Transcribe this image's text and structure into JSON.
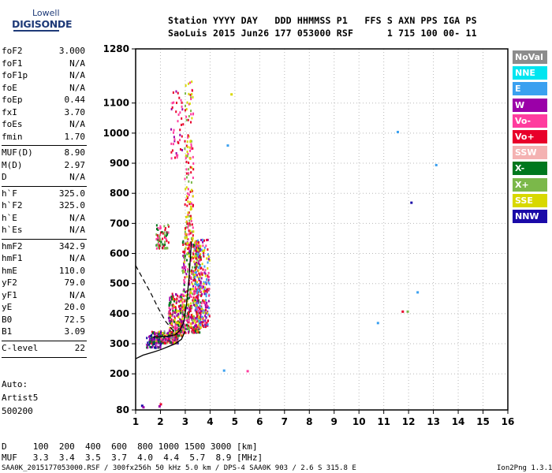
{
  "logo": {
    "line1": "Lowell",
    "line2": "DIGISONDE"
  },
  "header": {
    "line1": "Station YYYY DAY   DDD HHMMSS P1   FFS S AXN PPS IGA PS",
    "line2": "SaoLuis 2015 Jun26 177 053000 RSF      1 715 100 00- 11"
  },
  "params": [
    {
      "name": "foF2",
      "value": "3.000"
    },
    {
      "name": "foF1",
      "value": "N/A"
    },
    {
      "name": "foF1p",
      "value": "N/A"
    },
    {
      "name": "foE",
      "value": "N/A"
    },
    {
      "name": "foEp",
      "value": "0.44"
    },
    {
      "name": "fxI",
      "value": "3.70"
    },
    {
      "name": "foEs",
      "value": "N/A"
    },
    {
      "name": "fmin",
      "value": "1.70"
    },
    {
      "name": "MUF(D)",
      "value": "8.90"
    },
    {
      "name": "M(D)",
      "value": "2.97"
    },
    {
      "name": "D",
      "value": "N/A"
    },
    {
      "name": "h`F",
      "value": "325.0"
    },
    {
      "name": "h`F2",
      "value": "325.0"
    },
    {
      "name": "h`E",
      "value": "N/A"
    },
    {
      "name": "h`Es",
      "value": "N/A"
    },
    {
      "name": "hmF2",
      "value": "342.9"
    },
    {
      "name": "hmF1",
      "value": "N/A"
    },
    {
      "name": "hmE",
      "value": "110.0"
    },
    {
      "name": "yF2",
      "value": "79.0"
    },
    {
      "name": "yF1",
      "value": "N/A"
    },
    {
      "name": "yE",
      "value": "20.0"
    },
    {
      "name": "B0",
      "value": "72.5"
    },
    {
      "name": "B1",
      "value": "3.09"
    },
    {
      "name": "C-level",
      "value": "22"
    }
  ],
  "auto": {
    "label": "Auto:",
    "artist": "Artist5",
    "version": "500200"
  },
  "legend": [
    {
      "label": "NoVal",
      "color": "#8c8c8c"
    },
    {
      "label": "NNE",
      "color": "#00e5f0"
    },
    {
      "label": "E",
      "color": "#3aa0f0"
    },
    {
      "label": "W",
      "color": "#9b00a8"
    },
    {
      "label": "Vo-",
      "color": "#ff3c9e"
    },
    {
      "label": "Vo+",
      "color": "#e8002a"
    },
    {
      "label": "SSW",
      "color": "#f4b2b2"
    },
    {
      "label": "X-",
      "color": "#00781e"
    },
    {
      "label": "X+",
      "color": "#7bb84a"
    },
    {
      "label": "SSE",
      "color": "#d8d800"
    },
    {
      "label": "NNW",
      "color": "#1a0aa8"
    }
  ],
  "footer": {
    "d_row": "D     100  200  400  600  800 1000 1500 3000 [km]",
    "muf_row": "MUF   3.3  3.4  3.5  3.7  4.0  4.4  5.7  8.9 [MHz]",
    "file_info": "SAA0K_2015177053000.RSF / 300fx256h 50 kHz 5.0 km / DPS-4 SAA0K 903 / 2.6 S 315.8 E",
    "software": "Ion2Png 1.3.17"
  },
  "chart_data": {
    "type": "scatter",
    "xlim": [
      1,
      16
    ],
    "ylim": [
      80,
      1280
    ],
    "x_ticks": [
      1,
      2,
      3,
      4,
      5,
      6,
      7,
      8,
      9,
      10,
      11,
      12,
      13,
      14,
      15,
      16
    ],
    "y_ticks": [
      80,
      200,
      300,
      400,
      500,
      600,
      700,
      800,
      900,
      1000,
      1100,
      1280
    ],
    "grid": true,
    "profile_curve": [
      [
        1.0,
        250
      ],
      [
        1.3,
        262
      ],
      [
        1.7,
        272
      ],
      [
        2.0,
        280
      ],
      [
        2.3,
        290
      ],
      [
        2.6,
        300
      ],
      [
        2.85,
        315
      ],
      [
        3.0,
        342.9
      ]
    ],
    "trace_curve": [
      [
        1.7,
        322
      ],
      [
        2.0,
        323
      ],
      [
        2.3,
        325
      ],
      [
        2.6,
        330
      ],
      [
        2.8,
        345
      ],
      [
        2.95,
        375
      ],
      [
        3.05,
        430
      ],
      [
        3.15,
        520
      ],
      [
        3.25,
        640
      ]
    ],
    "dashed_curve": [
      [
        1.0,
        560
      ],
      [
        1.3,
        515
      ],
      [
        1.6,
        470
      ],
      [
        1.9,
        420
      ],
      [
        2.2,
        375
      ],
      [
        2.5,
        345
      ],
      [
        2.7,
        330
      ]
    ],
    "isolated_points": [
      {
        "x": 4.7,
        "y": 960,
        "color": "#3aa0f0"
      },
      {
        "x": 4.55,
        "y": 212,
        "color": "#3aa0f0"
      },
      {
        "x": 5.5,
        "y": 210,
        "color": "#ff3c9e"
      },
      {
        "x": 4.85,
        "y": 1130,
        "color": "#d8d800"
      },
      {
        "x": 11.55,
        "y": 1005,
        "color": "#3aa0f0"
      },
      {
        "x": 13.1,
        "y": 895,
        "color": "#3aa0f0"
      },
      {
        "x": 12.1,
        "y": 770,
        "color": "#1a0aa8"
      },
      {
        "x": 12.35,
        "y": 472,
        "color": "#3aa0f0"
      },
      {
        "x": 11.75,
        "y": 408,
        "color": "#e8002a"
      },
      {
        "x": 11.95,
        "y": 408,
        "color": "#7bb84a"
      },
      {
        "x": 10.75,
        "y": 370,
        "color": "#3aa0f0"
      },
      {
        "x": 1.25,
        "y": 95,
        "color": "#1a0aa8"
      },
      {
        "x": 1.3,
        "y": 90,
        "color": "#9b00a8"
      },
      {
        "x": 2.0,
        "y": 100,
        "color": "#e8002a"
      },
      {
        "x": 1.95,
        "y": 93,
        "color": "#9b00a8"
      }
    ],
    "echo_clusters": [
      {
        "x": [
          1.6,
          2.7
        ],
        "y": [
          305,
          345
        ],
        "n": 260,
        "colors": [
          "#00781e",
          "#9b00a8",
          "#1a0aa8",
          "#e8002a",
          "#d8d800",
          "#ff3c9e",
          "#8c8c8c"
        ]
      },
      {
        "x": [
          2.3,
          2.9
        ],
        "y": [
          330,
          470
        ],
        "n": 230,
        "colors": [
          "#00781e",
          "#9b00a8",
          "#d8d800",
          "#e8002a",
          "#ff3c9e"
        ]
      },
      {
        "x": [
          2.85,
          3.6
        ],
        "y": [
          340,
          650
        ],
        "n": 460,
        "colors": [
          "#e8002a",
          "#ff3c9e",
          "#9b00a8",
          "#d8d800",
          "#00781e",
          "#7bb84a"
        ]
      },
      {
        "x": [
          3.35,
          3.95
        ],
        "y": [
          360,
          650
        ],
        "n": 260,
        "colors": [
          "#9b00a8",
          "#e8002a",
          "#ff3c9e",
          "#d8d800",
          "#3aa0f0"
        ]
      },
      {
        "x": [
          2.95,
          3.3
        ],
        "y": [
          650,
          1180
        ],
        "n": 150,
        "colors": [
          "#d8d800",
          "#7bb84a",
          "#e8002a",
          "#ff3c9e"
        ]
      },
      {
        "x": [
          1.8,
          2.3
        ],
        "y": [
          620,
          700
        ],
        "n": 70,
        "colors": [
          "#00781e",
          "#7bb84a",
          "#ff3c9e",
          "#e8002a"
        ]
      },
      {
        "x": [
          2.4,
          2.9
        ],
        "y": [
          920,
          1160
        ],
        "n": 45,
        "colors": [
          "#e8002a",
          "#ff3c9e",
          "#9b00a8"
        ]
      },
      {
        "x": [
          1.4,
          2.0
        ],
        "y": [
          290,
          330
        ],
        "n": 60,
        "colors": [
          "#00781e",
          "#1a0aa8",
          "#9b00a8"
        ]
      }
    ]
  }
}
